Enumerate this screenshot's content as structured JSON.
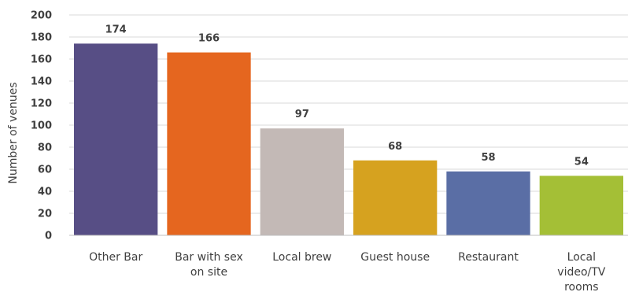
{
  "chart_data": {
    "type": "bar",
    "title": "",
    "xlabel": "",
    "ylabel": "Number of venues",
    "ylim": [
      0,
      200
    ],
    "yticks": [
      0,
      20,
      40,
      60,
      80,
      100,
      120,
      140,
      160,
      180,
      200
    ],
    "grid": true,
    "legend": "none",
    "categories": [
      "Other Bar",
      "Bar with sex on site",
      "Local brew",
      "Guest house",
      "Restaurant",
      "Local video/TV rooms"
    ],
    "category_lines": [
      [
        "Other Bar"
      ],
      [
        "Bar with sex",
        "on site"
      ],
      [
        "Local brew"
      ],
      [
        "Guest house"
      ],
      [
        "Restaurant"
      ],
      [
        "Local",
        "video/TV",
        "rooms"
      ]
    ],
    "values": [
      174,
      166,
      97,
      68,
      58,
      54
    ],
    "colors": [
      "#574e85",
      "#e5661f",
      "#c3b9b6",
      "#d6a21f",
      "#5a6ea5",
      "#a4bf36"
    ]
  }
}
